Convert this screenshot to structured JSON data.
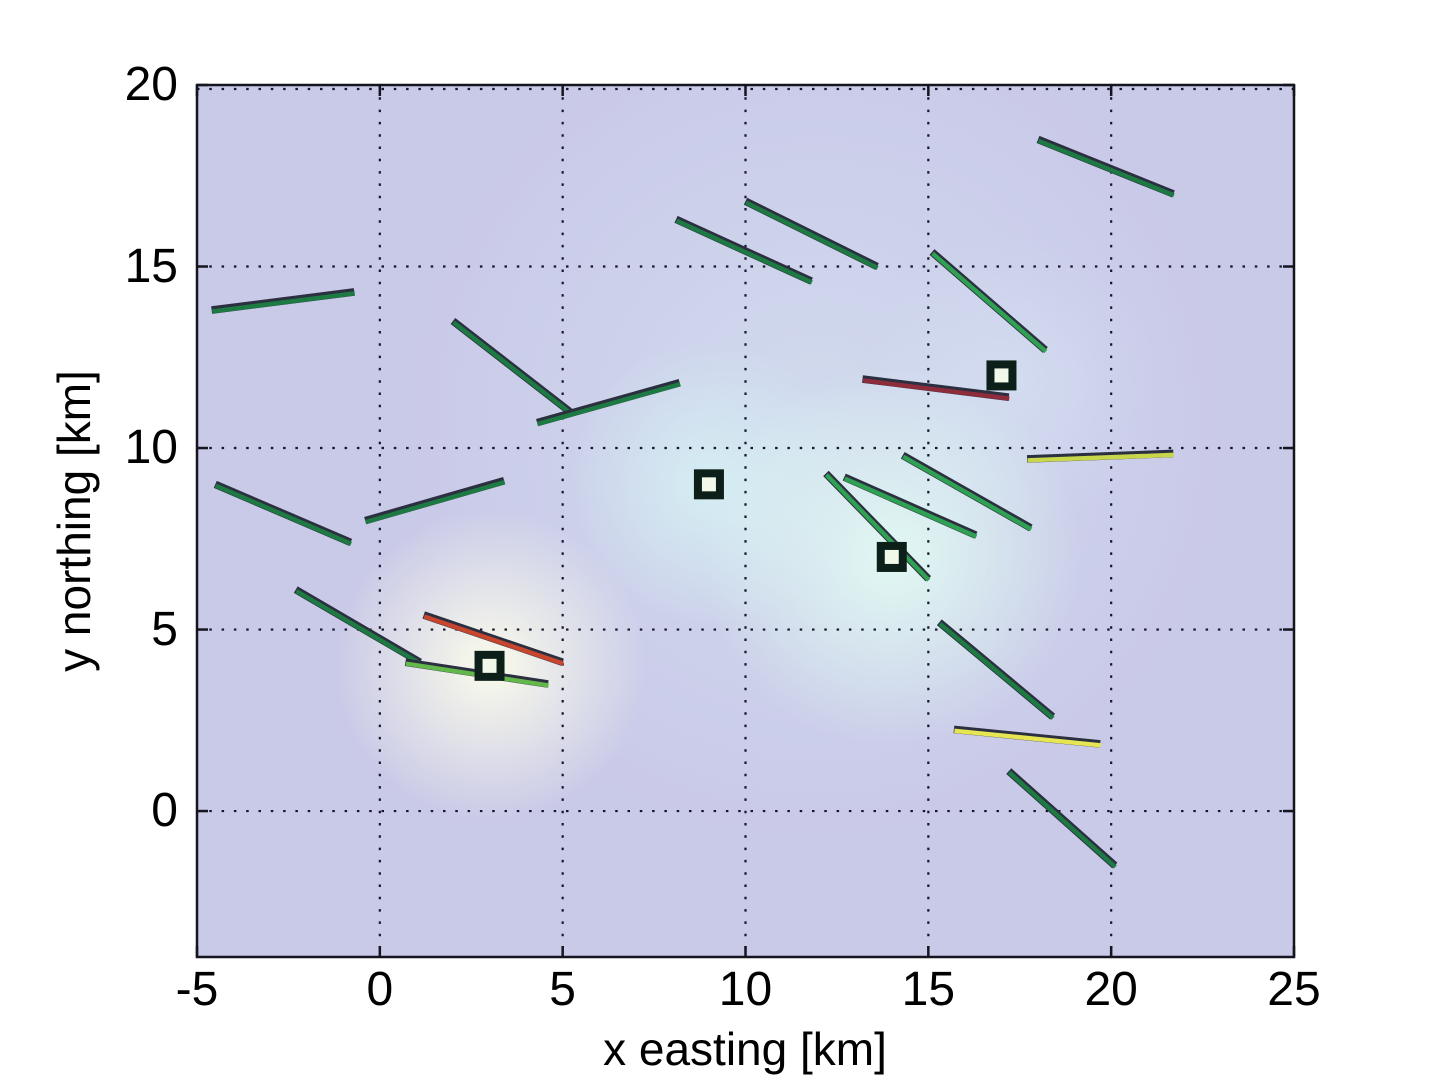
{
  "chart_data": {
    "type": "scatter",
    "title": "",
    "xlabel": "x easting [km]",
    "ylabel": "y northing [km]",
    "xlim": [
      -5,
      25
    ],
    "ylim": [
      -4.02,
      20
    ],
    "xticks": [
      -5,
      0,
      5,
      10,
      15,
      20,
      25
    ],
    "yticks": [
      0,
      5,
      10,
      15,
      20
    ],
    "grid": true,
    "grid_style": "dotted",
    "grid_color": "#15152e",
    "frame_color": "#15151f",
    "background": {
      "base_color": "#c9c9e8",
      "glows": [
        {
          "x": 12.0,
          "y": 10.5,
          "r_km": 11.5,
          "color": "#d7e9f2",
          "opacity": 0.55
        },
        {
          "x": 17.3,
          "y": 11.8,
          "r_km": 4.0,
          "color": "#d8e7f6",
          "opacity": 0.45
        },
        {
          "x": 9.0,
          "y": 9.0,
          "r_km": 3.9,
          "color": "#d6f2f4",
          "opacity": 0.85
        },
        {
          "x": 14.0,
          "y": 7.0,
          "r_km": 5.2,
          "color": "#e2fcf3",
          "opacity": 0.92
        },
        {
          "x": 3.0,
          "y": 4.0,
          "r_km": 4.3,
          "color": "#fdfeea",
          "opacity": 0.95
        }
      ]
    },
    "palette": {
      "forest": "#1c7a42",
      "green": "#2fa153",
      "lightgreen": "#62b84a",
      "red": "#c8452e",
      "maroon": "#8e2c3c",
      "olive": "#c8d64c",
      "yellow": "#e6e554",
      "segment_shadow": "#2b2f3f"
    },
    "segments": [
      {
        "x1": -4.6,
        "y1": 13.8,
        "x2": -0.7,
        "y2": 14.3,
        "color": "forest"
      },
      {
        "x1": 2.0,
        "y1": 13.5,
        "x2": 5.2,
        "y2": 11.0,
        "color": "forest"
      },
      {
        "x1": 4.3,
        "y1": 10.7,
        "x2": 8.2,
        "y2": 11.8,
        "color": "forest"
      },
      {
        "x1": 8.1,
        "y1": 16.3,
        "x2": 11.8,
        "y2": 14.6,
        "color": "forest"
      },
      {
        "x1": 10.0,
        "y1": 16.8,
        "x2": 13.6,
        "y2": 15.0,
        "color": "forest"
      },
      {
        "x1": 18.0,
        "y1": 18.5,
        "x2": 21.7,
        "y2": 17.0,
        "color": "forest"
      },
      {
        "x1": 15.1,
        "y1": 15.4,
        "x2": 18.2,
        "y2": 12.7,
        "color": "green"
      },
      {
        "x1": -4.5,
        "y1": 9.0,
        "x2": -0.8,
        "y2": 7.4,
        "color": "forest"
      },
      {
        "x1": -0.4,
        "y1": 8.0,
        "x2": 3.4,
        "y2": 9.1,
        "color": "forest"
      },
      {
        "x1": -2.3,
        "y1": 6.1,
        "x2": 1.1,
        "y2": 4.1,
        "color": "forest"
      },
      {
        "x1": 14.3,
        "y1": 9.8,
        "x2": 17.8,
        "y2": 7.8,
        "color": "green"
      },
      {
        "x1": 12.2,
        "y1": 9.3,
        "x2": 15.0,
        "y2": 6.4,
        "color": "green"
      },
      {
        "x1": 12.7,
        "y1": 9.2,
        "x2": 16.3,
        "y2": 7.6,
        "color": "green"
      },
      {
        "x1": 15.3,
        "y1": 5.2,
        "x2": 18.4,
        "y2": 2.6,
        "color": "forest"
      },
      {
        "x1": 17.2,
        "y1": 1.1,
        "x2": 20.1,
        "y2": -1.5,
        "color": "forest"
      },
      {
        "x1": 0.7,
        "y1": 4.1,
        "x2": 4.6,
        "y2": 3.5,
        "color": "lightgreen"
      },
      {
        "x1": 1.2,
        "y1": 5.4,
        "x2": 5.0,
        "y2": 4.1,
        "color": "red"
      },
      {
        "x1": 13.2,
        "y1": 11.9,
        "x2": 17.2,
        "y2": 11.4,
        "color": "maroon"
      },
      {
        "x1": 17.7,
        "y1": 9.7,
        "x2": 21.7,
        "y2": 9.85,
        "color": "olive"
      },
      {
        "x1": 15.7,
        "y1": 2.25,
        "x2": 19.7,
        "y2": 1.85,
        "color": "yellow"
      }
    ],
    "markers": [
      {
        "x": 3,
        "y": 4
      },
      {
        "x": 9,
        "y": 9
      },
      {
        "x": 14,
        "y": 7
      },
      {
        "x": 17,
        "y": 12
      }
    ],
    "marker_style": {
      "shape": "square",
      "border_color": "#0c1f18",
      "fill_color": "#f1f8ea"
    }
  }
}
